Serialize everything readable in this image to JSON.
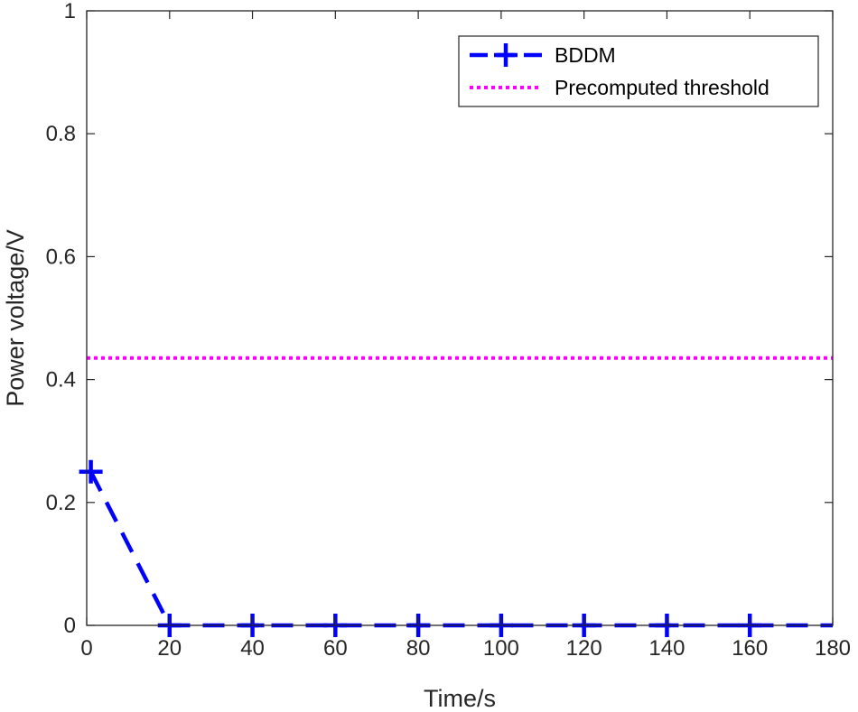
{
  "chart_data": {
    "type": "line",
    "title": "",
    "xlabel": "Time/s",
    "ylabel": "Power voltage/V",
    "xlim": [
      0,
      180
    ],
    "ylim": [
      0,
      1
    ],
    "x_ticks": [
      0,
      20,
      40,
      60,
      80,
      100,
      120,
      140,
      160,
      180
    ],
    "x_tick_labels": [
      "0",
      "20",
      "40",
      "60",
      "80",
      "100",
      "120",
      "140",
      "160",
      "180"
    ],
    "y_ticks": [
      0,
      0.2,
      0.4,
      0.6,
      0.8,
      1
    ],
    "y_tick_labels": [
      "0",
      "0.2",
      "0.4",
      "0.6",
      "0.8",
      "1"
    ],
    "grid": false,
    "legend_position": "top-right",
    "series": [
      {
        "name": "BDDM",
        "style": "dashed",
        "marker": "plus",
        "color": "#0000ff",
        "x": [
          1,
          20,
          40,
          60,
          80,
          100,
          120,
          140,
          160,
          180
        ],
        "y": [
          0.25,
          0,
          0,
          0,
          0,
          0,
          0,
          0,
          0,
          0
        ],
        "marker_x": [
          1,
          20,
          40,
          60,
          80,
          100,
          120,
          140,
          160
        ]
      },
      {
        "name": "Precomputed threshold",
        "style": "dotted",
        "color": "#ff00ff",
        "x": [
          0,
          180
        ],
        "y": [
          0.435,
          0.435
        ]
      }
    ]
  }
}
